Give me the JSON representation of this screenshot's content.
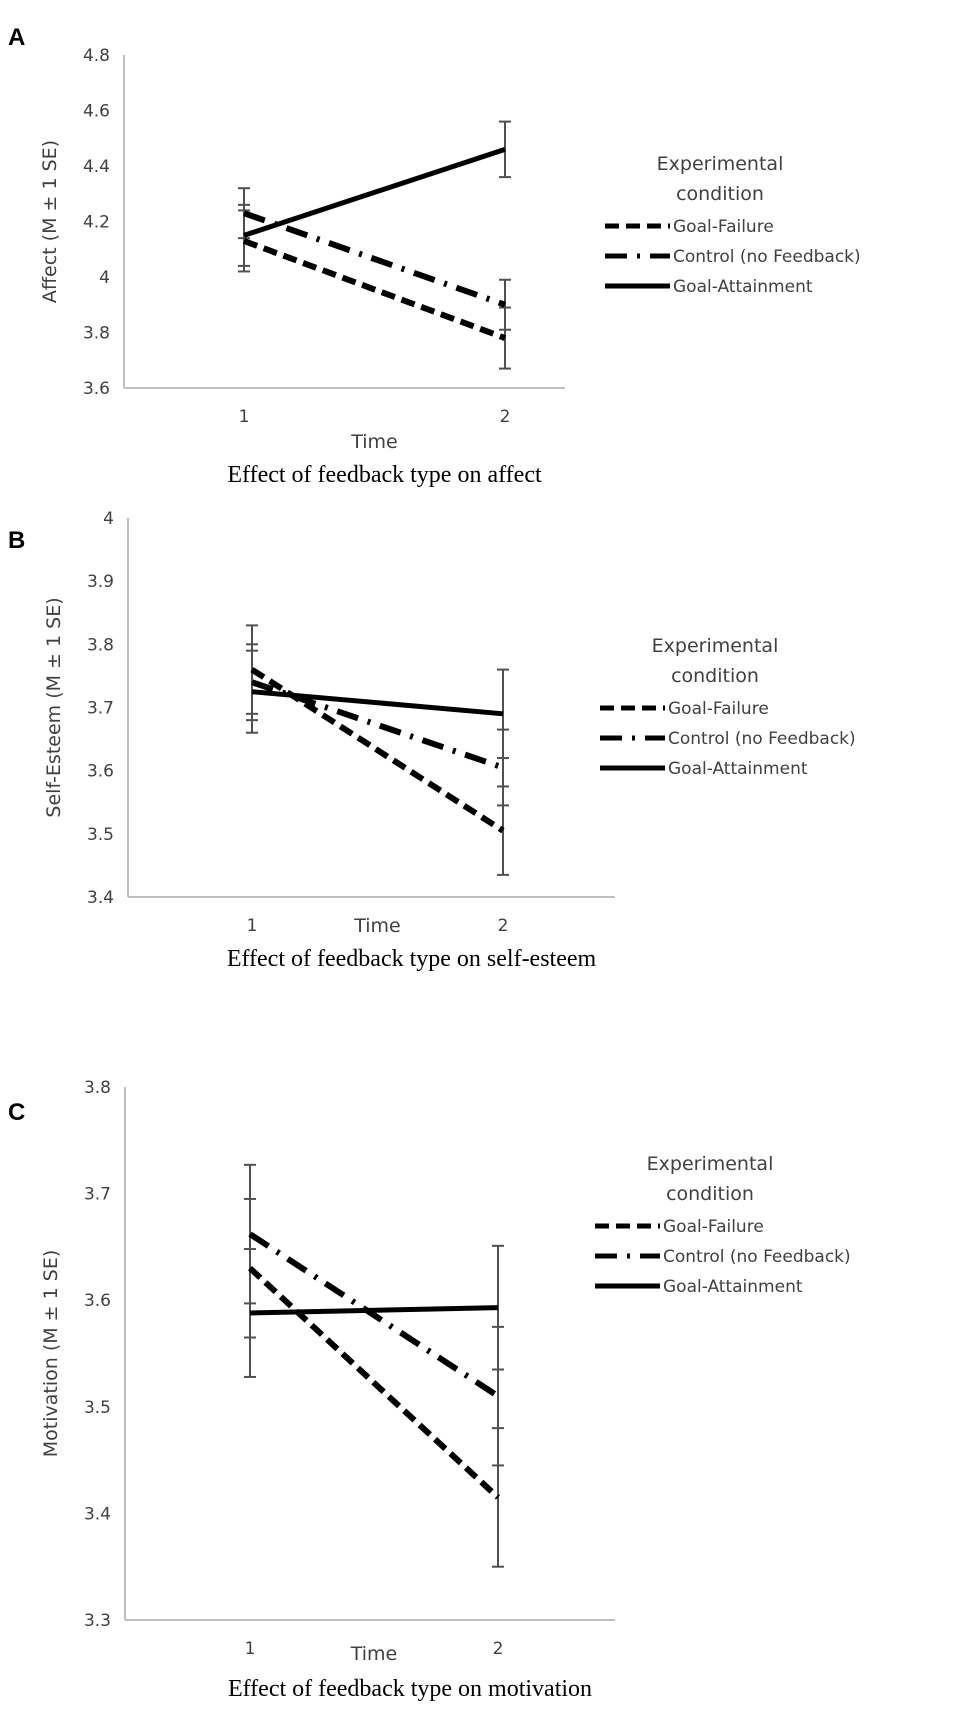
{
  "legend_title": [
    "Experimental",
    "condition"
  ],
  "series_names": [
    "Goal-Failure",
    "Control (no Feedback)",
    "Goal-Attainment"
  ],
  "chart_data": [
    {
      "type": "line",
      "panel": "A",
      "title": "Effect of feedback type on affect",
      "xlabel": "Time",
      "ylabel": "Affect (M ± 1 SE)",
      "categories": [
        "1",
        "2"
      ],
      "ylim": [
        3.6,
        4.8
      ],
      "yticks": [
        "3.6",
        "3.8",
        "4",
        "4.2",
        "4.4",
        "4.6",
        "4.8"
      ],
      "legend": "right",
      "grid": false,
      "series": [
        {
          "name": "Goal-Failure",
          "style": "dashed",
          "values": [
            4.13,
            3.78
          ],
          "se": [
            0.11,
            0.11
          ]
        },
        {
          "name": "Control (no Feedback)",
          "style": "dash-dot",
          "values": [
            4.23,
            3.9
          ],
          "se": [
            0.09,
            0.09
          ]
        },
        {
          "name": "Goal-Attainment",
          "style": "solid",
          "values": [
            4.15,
            4.46
          ],
          "se": [
            0.11,
            0.1
          ]
        }
      ]
    },
    {
      "type": "line",
      "panel": "B",
      "title": "Effect of feedback type on self-esteem",
      "xlabel": "Time",
      "ylabel": "Self-Esteem (M ± 1 SE)",
      "categories": [
        "1",
        "2"
      ],
      "ylim": [
        3.4,
        4.0
      ],
      "yticks": [
        "3.4",
        "3.5",
        "3.6",
        "3.7",
        "3.8",
        "3.9",
        "4"
      ],
      "legend": "right",
      "grid": false,
      "series": [
        {
          "name": "Goal-Failure",
          "style": "dashed",
          "values": [
            3.76,
            3.505
          ],
          "se": [
            0.07,
            0.07
          ]
        },
        {
          "name": "Control (no Feedback)",
          "style": "dash-dot",
          "values": [
            3.74,
            3.605
          ],
          "se": [
            0.06,
            0.06
          ]
        },
        {
          "name": "Goal-Attainment",
          "style": "solid",
          "values": [
            3.725,
            3.69
          ],
          "se": [
            0.065,
            0.07
          ]
        }
      ]
    },
    {
      "type": "line",
      "panel": "C",
      "title": "Effect of feedback type on motivation",
      "xlabel": "Time",
      "ylabel": "Motivation (M ± 1 SE)",
      "categories": [
        "1",
        "2"
      ],
      "ylim": [
        3.3,
        3.8
      ],
      "yticks": [
        "3.3",
        "3.4",
        "3.5",
        "3.6",
        "3.7",
        "3.8"
      ],
      "legend": "right",
      "grid": false,
      "series": [
        {
          "name": "Goal-Failure",
          "style": "dashed",
          "values": [
            3.63,
            3.415
          ],
          "se": [
            0.065,
            0.065
          ]
        },
        {
          "name": "Control (no Feedback)",
          "style": "dash-dot",
          "values": [
            3.662,
            3.51
          ],
          "se": [
            0.065,
            0.065
          ]
        },
        {
          "name": "Goal-Attainment",
          "style": "solid",
          "values": [
            3.588,
            3.593
          ],
          "se": [
            0.06,
            0.058
          ]
        }
      ]
    }
  ]
}
